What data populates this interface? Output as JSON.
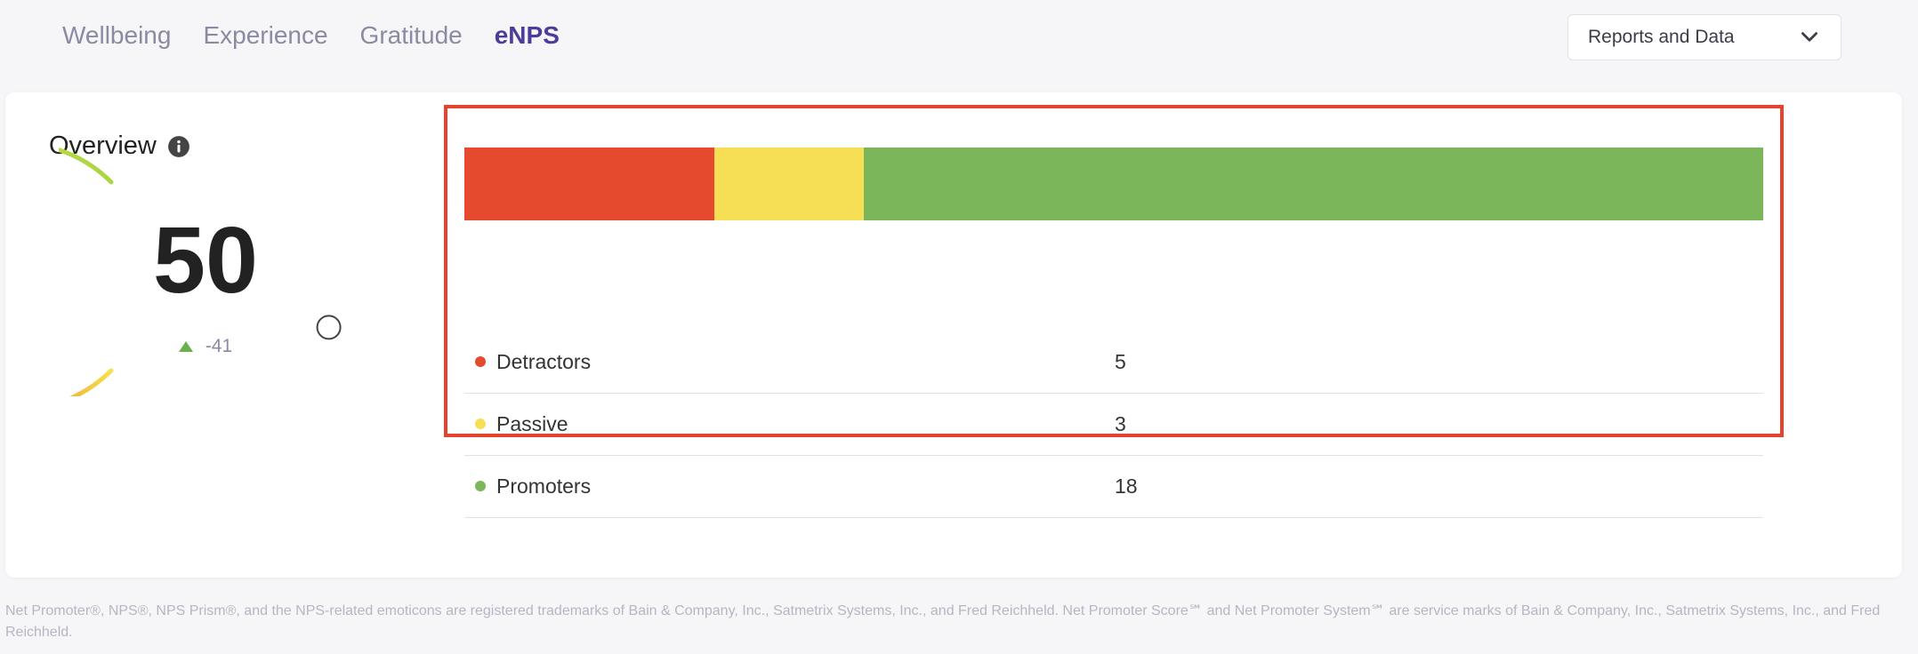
{
  "nav": {
    "tabs": [
      {
        "label": "Wellbeing"
      },
      {
        "label": "Experience"
      },
      {
        "label": "Gratitude"
      },
      {
        "label": "eNPS",
        "active": true
      }
    ]
  },
  "reports_dropdown": {
    "label": "Reports and Data"
  },
  "overview": {
    "title": "Overview",
    "info_icon": "info-circle-icon",
    "gauge": {
      "score": "50",
      "delta": "-41",
      "delta_icon": "triangle-up-icon",
      "indicator_fraction": 0.75
    },
    "breakdown": [
      {
        "label": "Detractors",
        "value": 5,
        "color": "#e64a2e"
      },
      {
        "label": "Passive",
        "value": 3,
        "color": "#f6df55"
      },
      {
        "label": "Promoters",
        "value": 18,
        "color": "#7bb65a"
      }
    ]
  },
  "footnote": "Net Promoter®, NPS®, NPS Prism®, and the NPS-related emoticons are registered trademarks of Bain & Company, Inc., Satmetrix Systems, Inc., and Fred Reichheld. Net Promoter Score℠ and Net Promoter System℠ are service marks of Bain & Company, Inc., Satmetrix Systems, Inc., and Fred Reichheld."
}
